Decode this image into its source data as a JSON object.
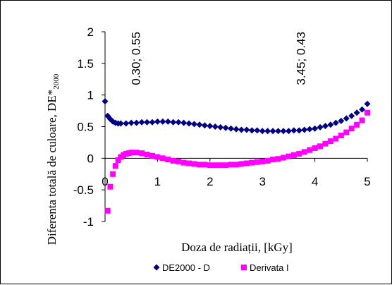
{
  "chart_data": {
    "type": "scatter",
    "title": "",
    "xlabel": "Doza de radiații, [kGy]",
    "ylabel": "Diferenta totală de culoare, DE*",
    "ylabel_sub": "2000",
    "xlim": [
      0,
      5
    ],
    "ylim": [
      -1,
      2
    ],
    "x_ticks": [
      0,
      1,
      2,
      3,
      4,
      5
    ],
    "y_ticks": [
      "-1",
      "-0.5",
      "0",
      "0.5",
      "1",
      "1.5",
      "2"
    ],
    "grid": false,
    "legend_position": "bottom",
    "annotations": [
      {
        "text": "0.30; 0.55",
        "x": 0.3,
        "y": 0.55
      },
      {
        "text": "3.45; 0.43",
        "x": 3.45,
        "y": 0.43
      }
    ],
    "series": [
      {
        "name": "DE2000 - D",
        "color": "#000080",
        "marker": "diamond",
        "points": [
          [
            0.0,
            0.9
          ],
          [
            0.05,
            0.67
          ],
          [
            0.1,
            0.62
          ],
          [
            0.15,
            0.58
          ],
          [
            0.2,
            0.56
          ],
          [
            0.25,
            0.55
          ],
          [
            0.3,
            0.55
          ],
          [
            0.4,
            0.55
          ],
          [
            0.5,
            0.56
          ],
          [
            0.6,
            0.56
          ],
          [
            0.7,
            0.57
          ],
          [
            0.8,
            0.57
          ],
          [
            0.9,
            0.57
          ],
          [
            1.0,
            0.58
          ],
          [
            1.1,
            0.58
          ],
          [
            1.2,
            0.58
          ],
          [
            1.3,
            0.57
          ],
          [
            1.4,
            0.57
          ],
          [
            1.5,
            0.56
          ],
          [
            1.6,
            0.55
          ],
          [
            1.7,
            0.54
          ],
          [
            1.8,
            0.53
          ],
          [
            1.9,
            0.52
          ],
          [
            2.0,
            0.51
          ],
          [
            2.1,
            0.5
          ],
          [
            2.2,
            0.49
          ],
          [
            2.3,
            0.48
          ],
          [
            2.4,
            0.47
          ],
          [
            2.5,
            0.46
          ],
          [
            2.6,
            0.45
          ],
          [
            2.7,
            0.45
          ],
          [
            2.8,
            0.44
          ],
          [
            2.9,
            0.44
          ],
          [
            3.0,
            0.43
          ],
          [
            3.1,
            0.43
          ],
          [
            3.2,
            0.43
          ],
          [
            3.3,
            0.43
          ],
          [
            3.4,
            0.43
          ],
          [
            3.5,
            0.43
          ],
          [
            3.6,
            0.44
          ],
          [
            3.7,
            0.44
          ],
          [
            3.8,
            0.45
          ],
          [
            3.9,
            0.46
          ],
          [
            4.0,
            0.47
          ],
          [
            4.1,
            0.49
          ],
          [
            4.2,
            0.51
          ],
          [
            4.3,
            0.53
          ],
          [
            4.4,
            0.56
          ],
          [
            4.5,
            0.59
          ],
          [
            4.6,
            0.63
          ],
          [
            4.7,
            0.67
          ],
          [
            4.8,
            0.72
          ],
          [
            4.9,
            0.77
          ],
          [
            5.0,
            0.86
          ]
        ]
      },
      {
        "name": "Derivata I",
        "color": "#FF00FF",
        "marker": "square",
        "points": [
          [
            0.05,
            -0.83
          ],
          [
            0.1,
            -0.45
          ],
          [
            0.15,
            -0.25
          ],
          [
            0.2,
            -0.12
          ],
          [
            0.25,
            -0.03
          ],
          [
            0.3,
            0.02
          ],
          [
            0.35,
            0.05
          ],
          [
            0.4,
            0.07
          ],
          [
            0.45,
            0.08
          ],
          [
            0.5,
            0.09
          ],
          [
            0.6,
            0.09
          ],
          [
            0.7,
            0.08
          ],
          [
            0.8,
            0.06
          ],
          [
            0.9,
            0.04
          ],
          [
            1.0,
            0.02
          ],
          [
            1.1,
            0.0
          ],
          [
            1.2,
            -0.02
          ],
          [
            1.3,
            -0.04
          ],
          [
            1.4,
            -0.05
          ],
          [
            1.5,
            -0.07
          ],
          [
            1.6,
            -0.08
          ],
          [
            1.7,
            -0.09
          ],
          [
            1.8,
            -0.1
          ],
          [
            1.9,
            -0.1
          ],
          [
            2.0,
            -0.11
          ],
          [
            2.1,
            -0.11
          ],
          [
            2.2,
            -0.11
          ],
          [
            2.3,
            -0.11
          ],
          [
            2.4,
            -0.1
          ],
          [
            2.5,
            -0.1
          ],
          [
            2.6,
            -0.09
          ],
          [
            2.7,
            -0.08
          ],
          [
            2.8,
            -0.07
          ],
          [
            2.9,
            -0.06
          ],
          [
            3.0,
            -0.05
          ],
          [
            3.1,
            -0.04
          ],
          [
            3.2,
            -0.02
          ],
          [
            3.3,
            -0.01
          ],
          [
            3.4,
            0.01
          ],
          [
            3.5,
            0.03
          ],
          [
            3.6,
            0.05
          ],
          [
            3.7,
            0.07
          ],
          [
            3.8,
            0.1
          ],
          [
            3.9,
            0.13
          ],
          [
            4.0,
            0.16
          ],
          [
            4.1,
            0.19
          ],
          [
            4.2,
            0.23
          ],
          [
            4.3,
            0.27
          ],
          [
            4.4,
            0.31
          ],
          [
            4.5,
            0.36
          ],
          [
            4.6,
            0.41
          ],
          [
            4.7,
            0.47
          ],
          [
            4.8,
            0.53
          ],
          [
            4.9,
            0.6
          ],
          [
            5.0,
            0.72
          ]
        ]
      }
    ]
  }
}
